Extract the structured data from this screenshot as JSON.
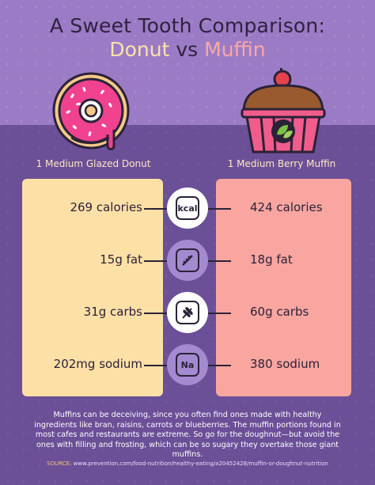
{
  "title": "A Sweet Tooth Comparison:",
  "subtitle": {
    "left": "Donut",
    "middle": "vs",
    "right": "Muffin"
  },
  "donut": {
    "label": "1 Medium Glazed Donut"
  },
  "muffin": {
    "label": "1 Medium Berry Muffin"
  },
  "rows": [
    {
      "left": "269 calories",
      "right": "424 calories",
      "icon": "kcal-icon",
      "icon_text": "kcal"
    },
    {
      "left": "15g fat",
      "right": "18g fat",
      "icon": "scale-icon"
    },
    {
      "left": "31g carbs",
      "right": "60g carbs",
      "icon": "wheat-icon"
    },
    {
      "left": "202mg sodium",
      "right": "380 sodium",
      "icon": "sodium-icon",
      "icon_text": "Na"
    }
  ],
  "footnote": "Muffins can be deceiving, since you often find ones made with healthy ingredients like bran, raisins, carrots or blueberries. The muffin portions found in most cafes and restaurants are extreme. So go for the doughnut—but avoid the ones with filling and frosting, which can be so sugary they overtake those giant muffins.",
  "source": {
    "label": "SOURCE:",
    "url": "www.prevention.com/food-nutrition/healthy-eating/a20452428/muffin-or-doughnut-nutrition"
  },
  "colors": {
    "top_bg": "#9b7bc6",
    "bottom_bg": "#6b4f97",
    "donut_panel": "#fde0a6",
    "muffin_panel": "#f9a6a0",
    "donut_accent": "#fde2a8",
    "muffin_accent": "#f9a9a1"
  }
}
